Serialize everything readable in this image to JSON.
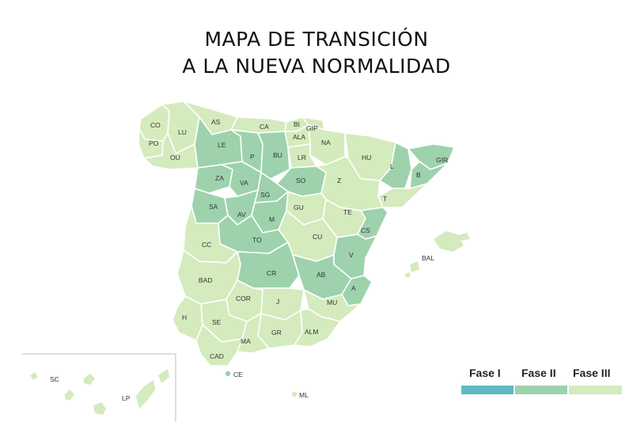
{
  "title": {
    "line1": "MAPA DE TRANSICIÓN",
    "line2": "A LA NUEVA NORMALIDAD"
  },
  "colors": {
    "fase1": "#5cbcbf",
    "fase2": "#9dd2ad",
    "fase3": "#d4ebbd",
    "border": "#ffffff"
  },
  "legend": [
    {
      "label": "Fase I",
      "phase": 1
    },
    {
      "label": "Fase II",
      "phase": 2
    },
    {
      "label": "Fase III",
      "phase": 3
    }
  ],
  "provinces": [
    {
      "code": "CO",
      "phase": 3
    },
    {
      "code": "LU",
      "phase": 3
    },
    {
      "code": "AS",
      "phase": 3
    },
    {
      "code": "CA",
      "phase": 3
    },
    {
      "code": "BI",
      "phase": 3
    },
    {
      "code": "GIP",
      "phase": 3
    },
    {
      "code": "ALA",
      "phase": 3
    },
    {
      "code": "NA",
      "phase": 3
    },
    {
      "code": "PO",
      "phase": 3
    },
    {
      "code": "OU",
      "phase": 3
    },
    {
      "code": "LE",
      "phase": 2
    },
    {
      "code": "P",
      "phase": 2
    },
    {
      "code": "BU",
      "phase": 2
    },
    {
      "code": "LR",
      "phase": 3
    },
    {
      "code": "HU",
      "phase": 3
    },
    {
      "code": "L",
      "phase": 2
    },
    {
      "code": "GIR",
      "phase": 2
    },
    {
      "code": "B",
      "phase": 2
    },
    {
      "code": "T",
      "phase": 3
    },
    {
      "code": "ZA",
      "phase": 2
    },
    {
      "code": "VA",
      "phase": 2
    },
    {
      "code": "SO",
      "phase": 2
    },
    {
      "code": "Z",
      "phase": 3
    },
    {
      "code": "SG",
      "phase": 2
    },
    {
      "code": "SA",
      "phase": 2
    },
    {
      "code": "AV",
      "phase": 2
    },
    {
      "code": "M",
      "phase": 2
    },
    {
      "code": "GU",
      "phase": 3
    },
    {
      "code": "TE",
      "phase": 3
    },
    {
      "code": "CS",
      "phase": 2
    },
    {
      "code": "TO",
      "phase": 2
    },
    {
      "code": "CU",
      "phase": 3
    },
    {
      "code": "CC",
      "phase": 3
    },
    {
      "code": "V",
      "phase": 2
    },
    {
      "code": "CR",
      "phase": 2
    },
    {
      "code": "AB",
      "phase": 2
    },
    {
      "code": "BAD",
      "phase": 3
    },
    {
      "code": "A",
      "phase": 2
    },
    {
      "code": "COR",
      "phase": 3
    },
    {
      "code": "J",
      "phase": 3
    },
    {
      "code": "MU",
      "phase": 3
    },
    {
      "code": "H",
      "phase": 3
    },
    {
      "code": "SE",
      "phase": 3
    },
    {
      "code": "GR",
      "phase": 3
    },
    {
      "code": "ALM",
      "phase": 3
    },
    {
      "code": "MA",
      "phase": 3
    },
    {
      "code": "CAD",
      "phase": 3
    },
    {
      "code": "CE",
      "phase": 2
    },
    {
      "code": "ML",
      "phase": 3
    },
    {
      "code": "BAL",
      "phase": 3
    },
    {
      "code": "SC",
      "phase": 3
    },
    {
      "code": "LP",
      "phase": 3
    }
  ]
}
